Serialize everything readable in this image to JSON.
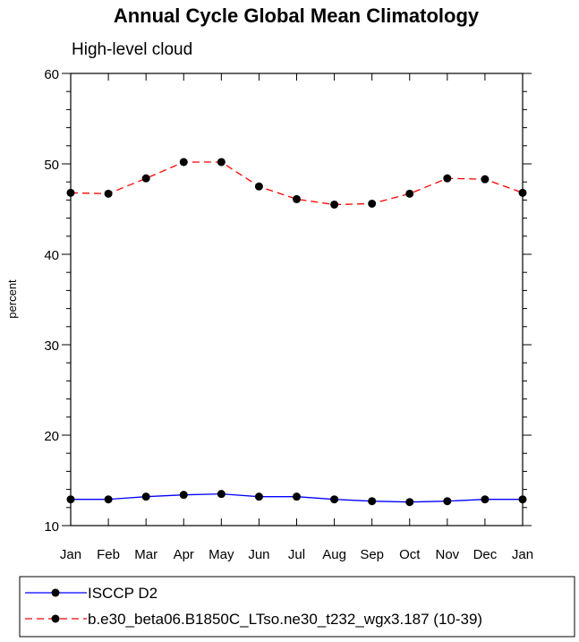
{
  "chart_data": {
    "type": "line",
    "title": "Annual Cycle Global Mean Climatology",
    "subtitle": "High-level cloud",
    "xlabel": "",
    "ylabel": "percent",
    "categories": [
      "Jan",
      "Feb",
      "Mar",
      "Apr",
      "May",
      "Jun",
      "Jul",
      "Aug",
      "Sep",
      "Oct",
      "Nov",
      "Dec",
      "Jan"
    ],
    "ylim": [
      10,
      60
    ],
    "yticks": [
      10,
      20,
      30,
      40,
      50,
      60
    ],
    "grid": false,
    "legend_position": "bottom",
    "series": [
      {
        "name": "ISCCP D2",
        "color": "#0000ff",
        "style": "solid",
        "marker": "filled-circle",
        "values": [
          12.9,
          12.9,
          13.2,
          13.4,
          13.5,
          13.2,
          13.2,
          12.9,
          12.7,
          12.6,
          12.7,
          12.9,
          12.9
        ]
      },
      {
        "name": "b.e30_beta06.B1850C_LTso.ne30_t232_wgx3.187 (10-39)",
        "color": "#ff0000",
        "style": "dashed",
        "marker": "filled-circle",
        "values": [
          46.8,
          46.7,
          48.4,
          50.2,
          50.2,
          47.5,
          46.1,
          45.5,
          45.6,
          46.7,
          48.4,
          48.3,
          46.8
        ]
      }
    ]
  }
}
